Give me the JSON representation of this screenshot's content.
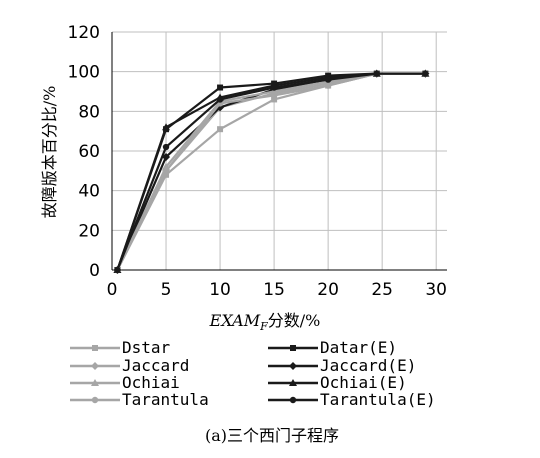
{
  "chart_data": {
    "type": "line",
    "caption": "(a)三个西门子程序",
    "ylabel": "故障版本百分比/%",
    "xlabel_main": "EXAM",
    "xlabel_sub": "F",
    "xlabel_suffix": "分数/%",
    "xlim": [
      0,
      31
    ],
    "ylim": [
      0,
      120
    ],
    "x_ticks": [
      0,
      5,
      10,
      15,
      20,
      25,
      30
    ],
    "y_ticks": [
      0,
      20,
      40,
      60,
      80,
      100,
      120
    ],
    "grid": true,
    "legend_placement": "bottom",
    "series": [
      {
        "name": "Dstar",
        "color": "#a6a6a6",
        "marker": "square",
        "x": [
          0.5,
          5,
          10,
          15,
          20,
          24.5,
          29
        ],
        "y": [
          0,
          48,
          71,
          86,
          93,
          99,
          99
        ]
      },
      {
        "name": "Datar(E)",
        "color": "#1a1a1a",
        "marker": "square",
        "x": [
          0.5,
          5,
          10,
          15,
          20,
          24.5,
          29
        ],
        "y": [
          0,
          71,
          92,
          94,
          98,
          99,
          99
        ]
      },
      {
        "name": "Jaccard",
        "color": "#a6a6a6",
        "marker": "diamond",
        "x": [
          0.5,
          5,
          10,
          15,
          20,
          24.5,
          29
        ],
        "y": [
          0,
          50,
          82,
          89,
          94,
          99,
          99
        ]
      },
      {
        "name": "Jaccard(E)",
        "color": "#1a1a1a",
        "marker": "diamond",
        "x": [
          0.5,
          5,
          10,
          15,
          20,
          24.5,
          29
        ],
        "y": [
          0,
          57,
          82,
          91,
          96,
          99,
          99
        ]
      },
      {
        "name": "Ochiai",
        "color": "#a6a6a6",
        "marker": "triangle",
        "x": [
          0.5,
          5,
          10,
          15,
          20,
          24.5,
          29
        ],
        "y": [
          0,
          52,
          85,
          90,
          95,
          99,
          99
        ]
      },
      {
        "name": "Ochiai(E)",
        "color": "#1a1a1a",
        "marker": "triangle",
        "x": [
          0.5,
          5,
          10,
          15,
          20,
          24.5,
          29
        ],
        "y": [
          0,
          72,
          87,
          93,
          97,
          99,
          99
        ]
      },
      {
        "name": "Tarantula",
        "color": "#a6a6a6",
        "marker": "circle",
        "x": [
          0.5,
          5,
          10,
          15,
          20,
          24.5,
          29
        ],
        "y": [
          0,
          50,
          84,
          88,
          93,
          99,
          99
        ]
      },
      {
        "name": "Tarantula(E)",
        "color": "#1a1a1a",
        "marker": "circle",
        "x": [
          0.5,
          5,
          10,
          15,
          20,
          24.5,
          29
        ],
        "y": [
          0,
          62,
          86,
          92,
          96,
          99,
          99
        ]
      }
    ]
  }
}
